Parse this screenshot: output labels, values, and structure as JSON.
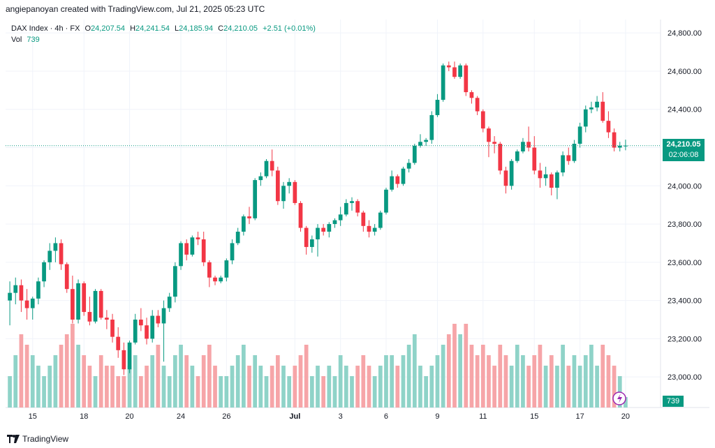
{
  "header": {
    "attribution": "angiepanoyan created with TradingView.com, Jul 21, 2025 05:23 UTC"
  },
  "legend": {
    "symbol": "DAX Index · 4h · FX",
    "o_label": "O",
    "o_value": "24,207.54",
    "h_label": "H",
    "h_value": "24,241.54",
    "l_label": "L",
    "l_value": "24,185.94",
    "c_label": "C",
    "c_value": "24,210.05",
    "change": "+2.51 (+0.01%)",
    "vol_label": "Vol",
    "vol_value": "739"
  },
  "price_badge": {
    "price": "24,210.05",
    "countdown": "02:06:08"
  },
  "vol_badge": "739",
  "footer": {
    "brand": "TradingView"
  },
  "colors": {
    "up": "#089981",
    "down": "#f23645",
    "vol_up": "#8fd3c8",
    "vol_down": "#f6a5a8"
  },
  "chart_data": {
    "type": "candlestick",
    "y_ticks": [
      "24,800.00",
      "24,600.00",
      "24,400.00",
      "24,200.00",
      "24,000.00",
      "23,800.00",
      "23,600.00",
      "23,400.00",
      "23,200.00",
      "23,000.00"
    ],
    "y_tick_values": [
      24800,
      24600,
      24400,
      24200,
      24000,
      23800,
      23600,
      23400,
      23200,
      23000
    ],
    "ylim": [
      22840,
      24870
    ],
    "x_labels": [
      "15",
      "18",
      "20",
      "24",
      "26",
      "Jul",
      "3",
      "6",
      "9",
      "11",
      "15",
      "17",
      "20"
    ],
    "x_label_index": [
      4,
      13,
      21,
      30,
      38,
      50,
      58,
      66,
      75,
      83,
      92,
      100,
      108
    ],
    "last_price": 24210.05,
    "candles": [
      [
        23400,
        23500,
        23270,
        23440,
        3
      ],
      [
        23440,
        23520,
        23380,
        23480,
        5
      ],
      [
        23480,
        23510,
        23340,
        23400,
        7
      ],
      [
        23400,
        23460,
        23300,
        23360,
        6
      ],
      [
        23360,
        23420,
        23300,
        23410,
        5
      ],
      [
        23410,
        23520,
        23380,
        23500,
        4
      ],
      [
        23500,
        23610,
        23470,
        23600,
        3
      ],
      [
        23600,
        23700,
        23560,
        23660,
        4
      ],
      [
        23660,
        23730,
        23600,
        23700,
        5
      ],
      [
        23700,
        23720,
        23560,
        23590,
        6
      ],
      [
        23590,
        23600,
        23440,
        23460,
        7
      ],
      [
        23460,
        23530,
        23280,
        23300,
        8
      ],
      [
        23300,
        23510,
        23280,
        23490,
        6
      ],
      [
        23490,
        23500,
        23320,
        23340,
        5
      ],
      [
        23340,
        23420,
        23270,
        23290,
        4
      ],
      [
        23290,
        23460,
        23280,
        23450,
        3
      ],
      [
        23450,
        23460,
        23300,
        23310,
        5
      ],
      [
        23310,
        23350,
        23250,
        23300,
        4
      ],
      [
        23300,
        23330,
        23180,
        23210,
        4
      ],
      [
        23210,
        23260,
        23100,
        23140,
        3
      ],
      [
        23140,
        23180,
        23010,
        23040,
        3
      ],
      [
        23040,
        23190,
        23020,
        23180,
        4
      ],
      [
        23180,
        23330,
        23170,
        23300,
        5
      ],
      [
        23300,
        23360,
        23240,
        23270,
        3
      ],
      [
        23270,
        23310,
        23170,
        23200,
        4
      ],
      [
        23200,
        23350,
        23180,
        23320,
        5
      ],
      [
        23320,
        23350,
        23260,
        23280,
        6
      ],
      [
        23280,
        23400,
        23080,
        23360,
        4
      ],
      [
        23360,
        23440,
        23340,
        23420,
        3
      ],
      [
        23420,
        23600,
        23390,
        23580,
        5
      ],
      [
        23580,
        23710,
        23560,
        23700,
        6
      ],
      [
        23700,
        23720,
        23610,
        23640,
        5
      ],
      [
        23640,
        23740,
        23630,
        23730,
        4
      ],
      [
        23730,
        23760,
        23690,
        23720,
        3
      ],
      [
        23720,
        23760,
        23580,
        23600,
        5
      ],
      [
        23600,
        23610,
        23470,
        23520,
        6
      ],
      [
        23520,
        23530,
        23480,
        23500,
        4
      ],
      [
        23500,
        23530,
        23490,
        23520,
        3
      ],
      [
        23520,
        23620,
        23500,
        23610,
        3
      ],
      [
        23610,
        23720,
        23590,
        23700,
        4
      ],
      [
        23700,
        23780,
        23690,
        23760,
        5
      ],
      [
        23760,
        23850,
        23740,
        23840,
        6
      ],
      [
        23840,
        23890,
        23800,
        23830,
        4
      ],
      [
        23830,
        24040,
        23820,
        24030,
        5
      ],
      [
        24030,
        24070,
        24000,
        24050,
        4
      ],
      [
        24050,
        24140,
        24040,
        24130,
        3
      ],
      [
        24130,
        24190,
        24050,
        24080,
        4
      ],
      [
        24080,
        24100,
        23900,
        23920,
        5
      ],
      [
        23920,
        24020,
        23880,
        24000,
        4
      ],
      [
        24000,
        24040,
        23960,
        24020,
        3
      ],
      [
        24020,
        24030,
        23900,
        23910,
        4
      ],
      [
        23910,
        23920,
        23760,
        23780,
        5
      ],
      [
        23780,
        23790,
        23640,
        23680,
        6
      ],
      [
        23680,
        23740,
        23650,
        23720,
        3
      ],
      [
        23720,
        23800,
        23630,
        23780,
        4
      ],
      [
        23780,
        23800,
        23740,
        23760,
        3
      ],
      [
        23760,
        23810,
        23730,
        23800,
        4
      ],
      [
        23800,
        23830,
        23780,
        23820,
        3
      ],
      [
        23820,
        23890,
        23790,
        23850,
        5
      ],
      [
        23850,
        23930,
        23840,
        23910,
        4
      ],
      [
        23910,
        23940,
        23870,
        23920,
        3
      ],
      [
        23920,
        23930,
        23840,
        23860,
        4
      ],
      [
        23860,
        23870,
        23760,
        23790,
        5
      ],
      [
        23790,
        23820,
        23730,
        23760,
        4
      ],
      [
        23760,
        23800,
        23740,
        23780,
        3
      ],
      [
        23780,
        23870,
        23770,
        23860,
        4
      ],
      [
        23860,
        23990,
        23850,
        23980,
        5
      ],
      [
        23980,
        24080,
        23970,
        24050,
        5
      ],
      [
        24050,
        24060,
        23990,
        24010,
        4
      ],
      [
        24010,
        24100,
        24000,
        24090,
        5
      ],
      [
        24090,
        24140,
        24070,
        24120,
        6
      ],
      [
        24120,
        24220,
        24110,
        24210,
        7
      ],
      [
        24210,
        24270,
        24200,
        24230,
        4
      ],
      [
        24230,
        24250,
        24210,
        24240,
        3
      ],
      [
        24240,
        24390,
        24220,
        24370,
        4
      ],
      [
        24370,
        24480,
        24360,
        24450,
        5
      ],
      [
        24450,
        24640,
        24440,
        24630,
        6
      ],
      [
        24630,
        24650,
        24600,
        24620,
        7
      ],
      [
        24620,
        24650,
        24560,
        24570,
        8
      ],
      [
        24570,
        24640,
        24560,
        24630,
        7
      ],
      [
        24630,
        24640,
        24470,
        24490,
        8
      ],
      [
        24490,
        24500,
        24430,
        24460,
        6
      ],
      [
        24460,
        24470,
        24370,
        24390,
        5
      ],
      [
        24390,
        24400,
        24280,
        24300,
        6
      ],
      [
        24300,
        24310,
        24150,
        24230,
        5
      ],
      [
        24230,
        24260,
        24170,
        24220,
        4
      ],
      [
        24220,
        24230,
        24060,
        24080,
        6
      ],
      [
        24080,
        24100,
        23960,
        24000,
        5
      ],
      [
        24000,
        24140,
        23980,
        24130,
        4
      ],
      [
        24130,
        24190,
        24120,
        24180,
        6
      ],
      [
        24180,
        24250,
        24170,
        24230,
        5
      ],
      [
        24230,
        24310,
        24180,
        24200,
        4
      ],
      [
        24200,
        24260,
        24060,
        24080,
        5
      ],
      [
        24080,
        24120,
        23990,
        24040,
        6
      ],
      [
        24040,
        24100,
        24000,
        24060,
        4
      ],
      [
        24060,
        24070,
        23950,
        23990,
        5
      ],
      [
        23990,
        24080,
        23930,
        24070,
        4
      ],
      [
        24070,
        24180,
        24050,
        24160,
        6
      ],
      [
        24160,
        24200,
        24110,
        24130,
        4
      ],
      [
        24130,
        24240,
        24120,
        24220,
        5
      ],
      [
        24220,
        24330,
        24200,
        24310,
        4
      ],
      [
        24310,
        24420,
        24280,
        24400,
        5
      ],
      [
        24400,
        24440,
        24380,
        24410,
        6
      ],
      [
        24410,
        24470,
        24390,
        24440,
        4
      ],
      [
        24440,
        24490,
        24330,
        24340,
        6
      ],
      [
        24340,
        24390,
        24250,
        24280,
        5
      ],
      [
        24280,
        24300,
        24180,
        24200,
        4
      ],
      [
        24200,
        24230,
        24180,
        24210,
        3
      ],
      [
        24207.54,
        24241.54,
        24185.94,
        24210.05,
        1
      ]
    ],
    "volumes": [
      3,
      5,
      7,
      6,
      5,
      4,
      3,
      4,
      5,
      6,
      7,
      8,
      6,
      5,
      4,
      3,
      5,
      4,
      4,
      3,
      3,
      4,
      5,
      3,
      4,
      5,
      6,
      4,
      3,
      5,
      6,
      5,
      4,
      3,
      5,
      6,
      4,
      3,
      3,
      4,
      5,
      6,
      4,
      5,
      4,
      3,
      4,
      5,
      4,
      3,
      4,
      5,
      6,
      3,
      4,
      3,
      4,
      3,
      5,
      4,
      3,
      4,
      5,
      4,
      3,
      4,
      5,
      5,
      4,
      5,
      6,
      7,
      4,
      3,
      4,
      5,
      6,
      7,
      8,
      7,
      8,
      6,
      5,
      6,
      5,
      4,
      6,
      5,
      4,
      6,
      5,
      4,
      5,
      6,
      4,
      5,
      4,
      6,
      4,
      5,
      4,
      5,
      6,
      4,
      6,
      5,
      4,
      3,
      1
    ]
  }
}
